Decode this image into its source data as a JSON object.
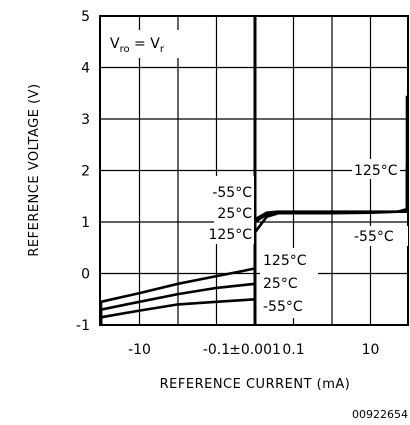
{
  "chart_data": {
    "type": "line",
    "title": "",
    "xlabel": "REFERENCE CURRENT (mA)",
    "ylabel": "REFERENCE VOLTAGE (V)",
    "ylim": [
      -1,
      5
    ],
    "y_ticks": [
      "-1",
      "0",
      "1",
      "2",
      "3",
      "4",
      "5"
    ],
    "x_ticks": [
      "-10",
      "-0.1",
      "±0.001",
      "0.1",
      "10"
    ],
    "x_scale": "symmetric-log",
    "grid": true,
    "annotations": [
      {
        "id": "condition",
        "prefix": "V",
        "prefix_sub": "ro",
        "mid": " = V",
        "mid_sub": "r"
      },
      {
        "id": "neg-55",
        "text": "-55°C"
      },
      {
        "id": "neg-25",
        "text": "25°C"
      },
      {
        "id": "neg-125",
        "text": "125°C"
      },
      {
        "id": "mid-125",
        "text": "125°C"
      },
      {
        "id": "mid-25",
        "text": "25°C"
      },
      {
        "id": "mid-55",
        "text": "-55°C"
      },
      {
        "id": "pos-125",
        "text": "125°C"
      },
      {
        "id": "pos-55",
        "text": "-55°C"
      }
    ],
    "series": [
      {
        "temperature": "125°C",
        "points": [
          [
            -30,
            -1.0
          ],
          [
            -20,
            -0.9
          ],
          [
            -10,
            -0.55
          ],
          [
            -1,
            -0.38
          ],
          [
            -0.1,
            -0.2
          ],
          [
            -0.01,
            -0.05
          ],
          [
            -0.002,
            0.05
          ],
          [
            -0.001,
            0.1
          ],
          [
            0.001,
            0.8
          ],
          [
            0.002,
            1.1
          ],
          [
            0.004,
            1.17
          ],
          [
            0.1,
            1.17
          ],
          [
            1,
            1.18
          ],
          [
            5,
            1.2
          ],
          [
            10,
            1.25
          ],
          [
            14,
            1.45
          ],
          [
            18,
            1.9
          ],
          [
            22,
            2.8
          ],
          [
            25,
            3.45
          ]
        ]
      },
      {
        "temperature": "25°C",
        "points": [
          [
            -30,
            -1.0
          ],
          [
            -20,
            -0.95
          ],
          [
            -10,
            -0.7
          ],
          [
            -1,
            -0.55
          ],
          [
            -0.1,
            -0.4
          ],
          [
            -0.01,
            -0.28
          ],
          [
            -0.001,
            -0.2
          ],
          [
            0.001,
            1.0
          ],
          [
            0.002,
            1.15
          ],
          [
            0.004,
            1.18
          ],
          [
            0.1,
            1.18
          ],
          [
            1,
            1.19
          ],
          [
            5,
            1.2
          ],
          [
            10,
            1.22
          ],
          [
            16,
            1.32
          ],
          [
            20,
            1.5
          ],
          [
            25,
            2.1
          ]
        ]
      },
      {
        "temperature": "-55°C",
        "points": [
          [
            -30,
            -1.0
          ],
          [
            -20,
            -1.0
          ],
          [
            -10,
            -0.85
          ],
          [
            -1,
            -0.72
          ],
          [
            -0.1,
            -0.6
          ],
          [
            -0.01,
            -0.55
          ],
          [
            -0.001,
            -0.5
          ],
          [
            0.001,
            1.05
          ],
          [
            0.002,
            1.18
          ],
          [
            0.004,
            1.2
          ],
          [
            0.1,
            1.2
          ],
          [
            1,
            1.2
          ],
          [
            5,
            1.2
          ],
          [
            10,
            1.2
          ],
          [
            16,
            1.25
          ],
          [
            20,
            1.45
          ],
          [
            25,
            1.95
          ]
        ]
      }
    ]
  },
  "figure_id": "00922654"
}
